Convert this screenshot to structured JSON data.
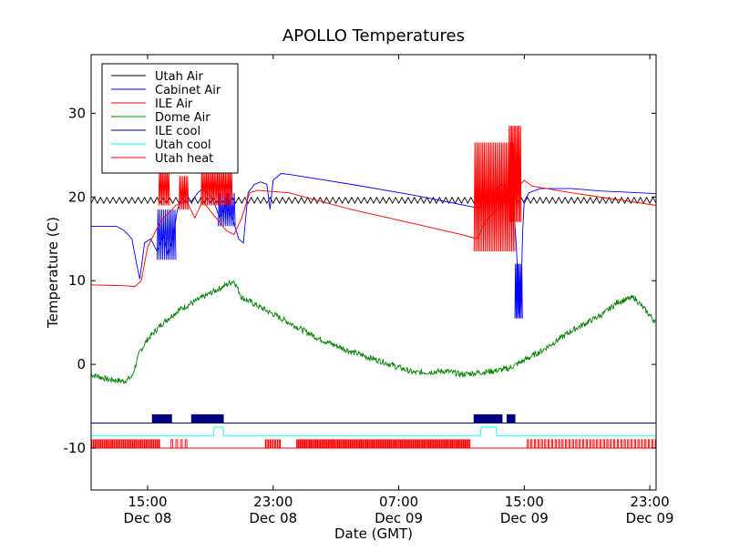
{
  "chart_data": {
    "type": "line",
    "title": "APOLLO Temperatures",
    "xlabel": "Date (GMT)",
    "ylabel": "Temperature (C)",
    "xlim": [
      11.4,
      47.4
    ],
    "ylim": [
      -15,
      37
    ],
    "x_unit": "hours since Dec 08 00:00 GMT",
    "xticks": [
      {
        "x": 15,
        "line1": "15:00",
        "line2": "Dec 08"
      },
      {
        "x": 23,
        "line1": "23:00",
        "line2": "Dec 08"
      },
      {
        "x": 31,
        "line1": "07:00",
        "line2": "Dec 09"
      },
      {
        "x": 39,
        "line1": "15:00",
        "line2": "Dec 09"
      },
      {
        "x": 47,
        "line1": "23:00",
        "line2": "Dec 09"
      }
    ],
    "yticks": [
      -10,
      0,
      10,
      20,
      30
    ],
    "legend_position": "top-left",
    "series": [
      {
        "name": "Utah Air",
        "color": "#000000",
        "style": "oscillating",
        "base": [
          [
            11.4,
            19.6
          ],
          [
            47.4,
            19.6
          ]
        ],
        "amplitude": 0.35,
        "period": 0.4
      },
      {
        "name": "Cabinet Air",
        "color": "#0000ff",
        "style": "line",
        "points": [
          [
            11.4,
            16.5
          ],
          [
            13.0,
            16.5
          ],
          [
            13.5,
            16.0
          ],
          [
            14.0,
            15.0
          ],
          [
            14.3,
            12.0
          ],
          [
            14.5,
            10.2
          ],
          [
            14.8,
            14.5
          ],
          [
            15.2,
            15.0
          ],
          [
            15.6,
            13.5
          ],
          [
            16.0,
            15.5
          ],
          [
            16.3,
            13.0
          ],
          [
            16.6,
            15.0
          ],
          [
            16.9,
            18.5
          ],
          [
            17.1,
            19.5
          ],
          [
            17.8,
            19.5
          ],
          [
            18.2,
            20.5
          ],
          [
            18.5,
            21.0
          ],
          [
            18.8,
            20.5
          ],
          [
            19.2,
            19.5
          ],
          [
            19.6,
            17.5
          ],
          [
            20.0,
            19.0
          ],
          [
            20.4,
            17.5
          ],
          [
            20.8,
            15.0
          ],
          [
            21.1,
            14.5
          ],
          [
            21.4,
            20.5
          ],
          [
            21.8,
            21.5
          ],
          [
            22.2,
            21.8
          ],
          [
            22.6,
            21.5
          ],
          [
            22.8,
            18.5
          ],
          [
            23.0,
            22.0
          ],
          [
            23.5,
            22.8
          ],
          [
            24.0,
            22.7
          ],
          [
            28.0,
            21.5
          ],
          [
            32.0,
            20.2
          ],
          [
            36.0,
            18.7
          ],
          [
            36.5,
            19.0
          ],
          [
            37.0,
            20.5
          ],
          [
            37.5,
            21.5
          ],
          [
            38.0,
            21.0
          ],
          [
            38.3,
            19.5
          ],
          [
            38.5,
            14.0
          ],
          [
            38.6,
            10.0
          ],
          [
            38.7,
            6.0
          ],
          [
            38.8,
            9.0
          ],
          [
            38.9,
            16.0
          ],
          [
            39.0,
            19.5
          ],
          [
            39.3,
            20.5
          ],
          [
            40.0,
            21.0
          ],
          [
            42.0,
            21.0
          ],
          [
            44.0,
            20.7
          ],
          [
            47.4,
            20.4
          ]
        ],
        "bursts": [
          {
            "x0": 15.6,
            "x1": 16.8,
            "lo": 12.5,
            "hi": 18.5,
            "period": 0.12
          },
          {
            "x0": 19.5,
            "x1": 20.6,
            "lo": 16.5,
            "hi": 20.5,
            "period": 0.12
          },
          {
            "x0": 38.4,
            "x1": 38.9,
            "lo": 5.5,
            "hi": 12.0,
            "period": 0.08
          }
        ]
      },
      {
        "name": "ILE Air",
        "color": "#ff0000",
        "style": "line",
        "points": [
          [
            11.4,
            9.5
          ],
          [
            13.5,
            9.4
          ],
          [
            14.2,
            9.3
          ],
          [
            14.6,
            10.0
          ],
          [
            15.0,
            14.0
          ],
          [
            15.4,
            15.5
          ],
          [
            15.8,
            17.0
          ],
          [
            16.3,
            18.0
          ],
          [
            16.8,
            19.0
          ],
          [
            17.5,
            19.5
          ],
          [
            18.0,
            17.5
          ],
          [
            18.5,
            19.5
          ],
          [
            20.0,
            16.0
          ],
          [
            20.5,
            15.5
          ],
          [
            21.0,
            17.5
          ],
          [
            21.5,
            20.5
          ],
          [
            22.0,
            20.8
          ],
          [
            24.0,
            20.5
          ],
          [
            28.0,
            18.5
          ],
          [
            32.0,
            16.8
          ],
          [
            35.0,
            15.5
          ],
          [
            36.0,
            15.0
          ],
          [
            36.5,
            17.0
          ],
          [
            38.0,
            20.0
          ],
          [
            38.5,
            21.0
          ],
          [
            39.0,
            22.0
          ],
          [
            39.5,
            21.3
          ],
          [
            42.0,
            20.5
          ],
          [
            47.4,
            19.0
          ]
        ],
        "bursts": [
          {
            "x0": 15.7,
            "x1": 16.4,
            "lo": 19.0,
            "hi": 23.5,
            "period": 0.1
          },
          {
            "x0": 17.0,
            "x1": 17.6,
            "lo": 18.5,
            "hi": 22.5,
            "period": 0.1
          },
          {
            "x0": 18.4,
            "x1": 20.4,
            "lo": 19.0,
            "hi": 23.5,
            "period": 0.1
          },
          {
            "x0": 35.8,
            "x1": 38.4,
            "lo": 13.5,
            "hi": 26.5,
            "period": 0.1
          },
          {
            "x0": 38.0,
            "x1": 38.8,
            "lo": 17.0,
            "hi": 28.5,
            "period": 0.08
          }
        ]
      },
      {
        "name": "Dome Air",
        "color": "#008000",
        "style": "line",
        "points": [
          [
            11.4,
            -1.2
          ],
          [
            12.5,
            -1.8
          ],
          [
            13.5,
            -2.0
          ],
          [
            14.0,
            -1.5
          ],
          [
            14.5,
            1.5
          ],
          [
            15.0,
            3.0
          ],
          [
            16.0,
            5.0
          ],
          [
            17.0,
            6.5
          ],
          [
            18.0,
            7.5
          ],
          [
            19.0,
            8.5
          ],
          [
            20.0,
            9.5
          ],
          [
            20.5,
            10.0
          ],
          [
            21.0,
            8.0
          ],
          [
            22.0,
            7.0
          ],
          [
            23.0,
            6.0
          ],
          [
            24.0,
            5.0
          ],
          [
            26.0,
            3.0
          ],
          [
            28.0,
            1.5
          ],
          [
            30.0,
            0.3
          ],
          [
            32.0,
            -1.0
          ],
          [
            34.0,
            -0.8
          ],
          [
            35.0,
            -1.2
          ],
          [
            36.0,
            -1.0
          ],
          [
            37.0,
            -0.8
          ],
          [
            38.0,
            -0.5
          ],
          [
            39.0,
            0.5
          ],
          [
            40.0,
            1.5
          ],
          [
            42.0,
            4.0
          ],
          [
            44.0,
            6.0
          ],
          [
            45.0,
            7.5
          ],
          [
            46.0,
            8.0
          ],
          [
            47.4,
            5.0
          ]
        ],
        "noise": 0.7
      },
      {
        "name": "ILE cool",
        "color": "#000080",
        "style": "line",
        "points": [
          [
            11.4,
            -7.0
          ],
          [
            47.4,
            -7.0
          ]
        ],
        "pulses": [
          {
            "x0": 15.3,
            "x1": 16.5,
            "top": -6.0,
            "period": 0.08
          },
          {
            "x0": 17.8,
            "x1": 19.8,
            "top": -6.0,
            "period": 0.08
          },
          {
            "x0": 35.8,
            "x1": 37.6,
            "top": -6.0,
            "period": 0.08
          },
          {
            "x0": 37.9,
            "x1": 38.4,
            "top": -6.0,
            "period": 0.08
          }
        ]
      },
      {
        "name": "Utah cool",
        "color": "#00ffff",
        "style": "line",
        "points": [
          [
            11.4,
            -8.5
          ],
          [
            19.2,
            -8.5
          ],
          [
            19.25,
            -7.5
          ],
          [
            19.8,
            -7.5
          ],
          [
            19.85,
            -8.5
          ],
          [
            36.2,
            -8.5
          ],
          [
            36.25,
            -7.5
          ],
          [
            37.2,
            -7.5
          ],
          [
            37.25,
            -8.5
          ],
          [
            47.4,
            -8.5
          ]
        ]
      },
      {
        "name": "Utah heat",
        "color": "#ff0000",
        "style": "line",
        "points": [
          [
            11.4,
            -10.0
          ],
          [
            47.4,
            -10.0
          ]
        ],
        "pulses": [
          {
            "x0": 11.4,
            "x1": 15.8,
            "top": -9.0,
            "period": 0.12
          },
          {
            "x0": 16.5,
            "x1": 17.5,
            "top": -9.0,
            "period": 0.3
          },
          {
            "x0": 22.5,
            "x1": 23.5,
            "top": -9.0,
            "period": 0.15
          },
          {
            "x0": 24.5,
            "x1": 35.5,
            "top": -9.0,
            "period": 0.1
          },
          {
            "x0": 39.2,
            "x1": 47.4,
            "top": -9.0,
            "period": 0.22
          }
        ]
      }
    ]
  }
}
